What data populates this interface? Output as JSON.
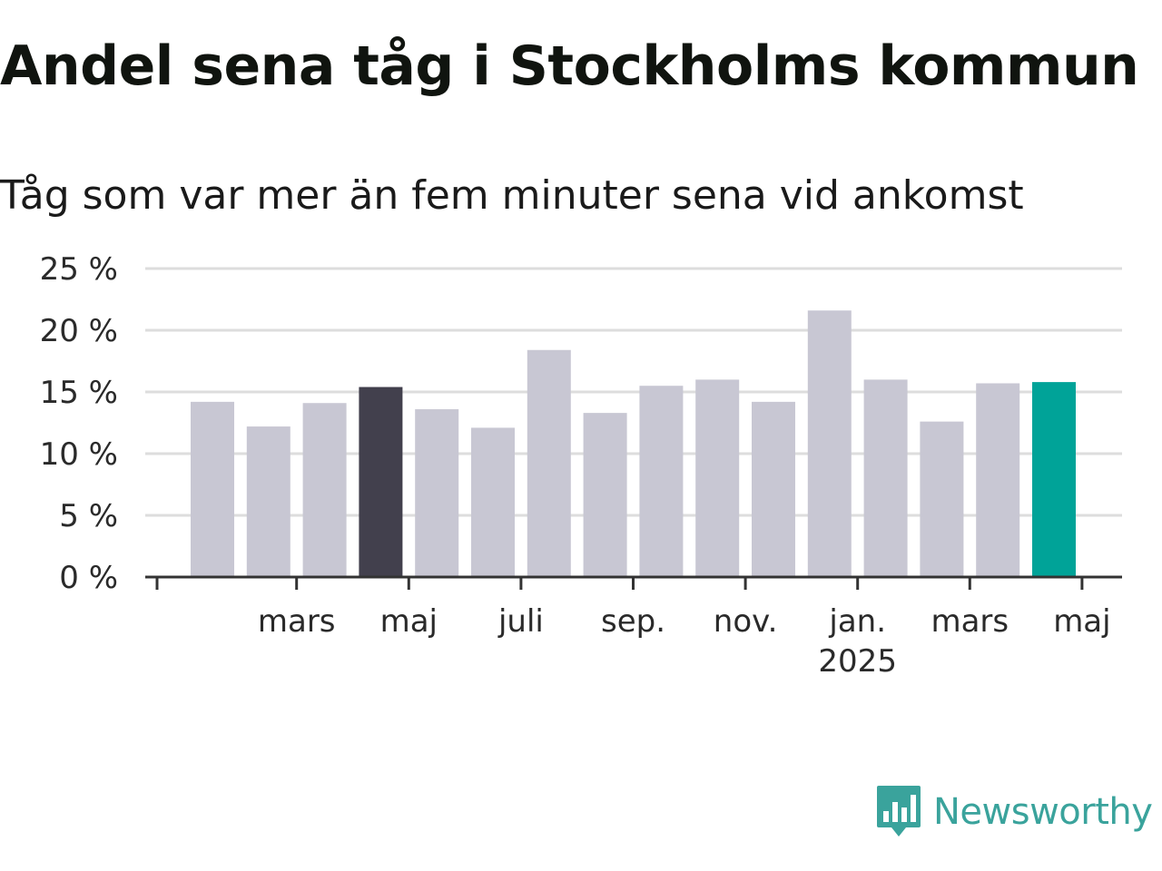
{
  "title": "Andel sena tåg i Stockholms kommun",
  "subtitle": "Tåg som var mer än fem minuter sena vid ankomst",
  "brand": {
    "name": "Newsworthy",
    "color": "#3aa39c",
    "icon": "newsworthy-logo-icon"
  },
  "colors": {
    "default_bar": "#c8c7d3",
    "highlight_previous": "#42404d",
    "highlight_latest": "#00a398",
    "grid": "#dddddd",
    "axis": "#333333"
  },
  "chart_data": {
    "type": "bar",
    "categories": [
      "2024-01",
      "2024-02",
      "2024-03",
      "2024-04",
      "2024-05",
      "2024-06",
      "2024-07",
      "2024-08",
      "2024-09",
      "2024-10",
      "2024-11",
      "2024-12",
      "2025-01",
      "2025-02",
      "2025-03",
      "2025-04",
      "2025-05"
    ],
    "values": [
      14.2,
      12.2,
      14.1,
      15.4,
      13.6,
      12.1,
      18.4,
      13.3,
      15.5,
      16.0,
      14.2,
      21.6,
      16.0,
      12.6,
      15.7,
      15.8,
      null
    ],
    "highlight": {
      "2024-04": "highlight_previous",
      "2025-04": "highlight_latest"
    },
    "ylim": [
      0,
      25
    ],
    "yticks": [
      0,
      5,
      10,
      15,
      20,
      25
    ],
    "ytick_labels": [
      "0 %",
      "5 %",
      "10 %",
      "15 %",
      "20 %",
      "25 %"
    ],
    "xticks": [
      {
        "label": "mars",
        "sublabel": ""
      },
      {
        "label": "maj",
        "sublabel": ""
      },
      {
        "label": "juli",
        "sublabel": ""
      },
      {
        "label": "sep.",
        "sublabel": ""
      },
      {
        "label": "nov.",
        "sublabel": ""
      },
      {
        "label": "jan.",
        "sublabel": "2025"
      },
      {
        "label": "mars",
        "sublabel": ""
      },
      {
        "label": "maj",
        "sublabel": ""
      }
    ],
    "grid": true,
    "xlabel": "",
    "ylabel": ""
  }
}
